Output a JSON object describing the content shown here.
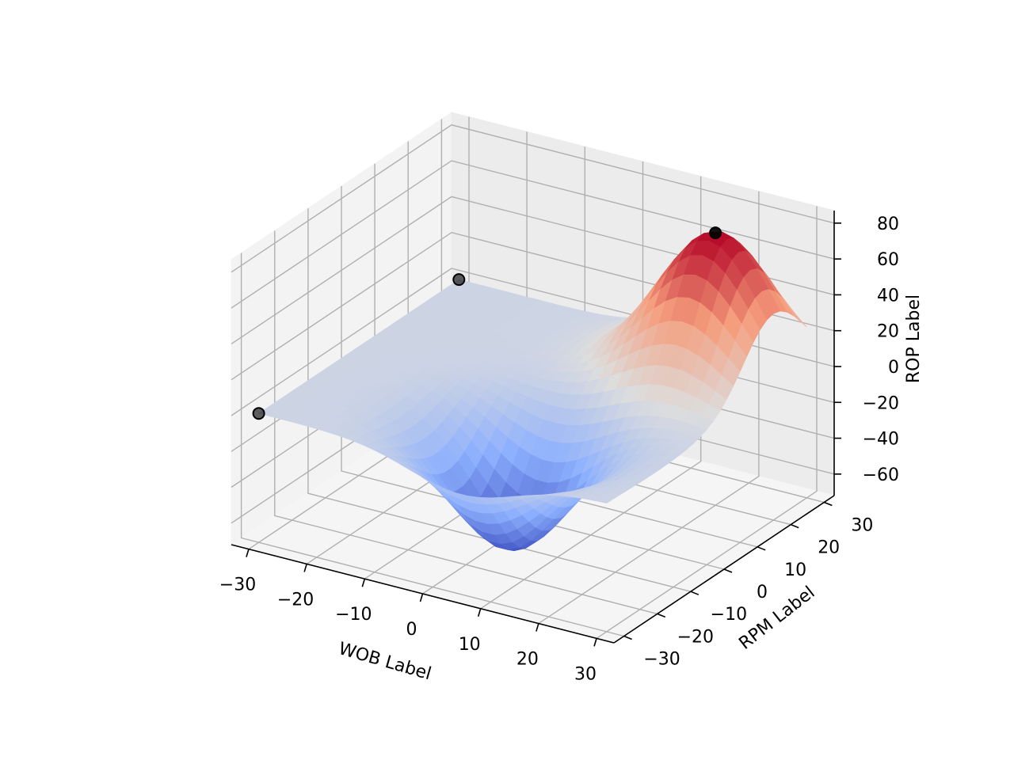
{
  "chart_data": {
    "type": "surface3d",
    "title": "",
    "xlabel": "WOB Label",
    "ylabel": "RPM Label",
    "zlabel": "ROP Label",
    "x_ticks": [
      "−30",
      "−20",
      "−10",
      "0",
      "10",
      "20",
      "30"
    ],
    "y_ticks": [
      "−30",
      "−20",
      "−10",
      "0",
      "10",
      "20",
      "30"
    ],
    "z_ticks": [
      "−60",
      "−40",
      "−20",
      "0",
      "20",
      "40",
      "60",
      "80"
    ],
    "x_tick_values": [
      -30,
      -20,
      -10,
      0,
      10,
      20,
      30
    ],
    "y_tick_values": [
      -30,
      -20,
      -10,
      0,
      10,
      20,
      30
    ],
    "z_tick_values": [
      -60,
      -40,
      -20,
      0,
      20,
      40,
      60,
      80
    ],
    "xlim": [
      -33,
      33
    ],
    "ylim": [
      -33,
      33
    ],
    "zlim": [
      -72,
      87
    ],
    "surface": {
      "x_range": [
        -30,
        30
      ],
      "y_range": [
        -30,
        30
      ],
      "grid_n": 31,
      "peak": {
        "x": 20,
        "y": 20,
        "z": 80,
        "sigma": 9
      },
      "trough": {
        "x": 5,
        "y": -15,
        "z": -65,
        "sigma": 9
      },
      "colormap": "coolwarm"
    },
    "points": [
      {
        "x": -30,
        "y": 30,
        "z": 0
      },
      {
        "x": -30,
        "y": -30,
        "z": 0
      },
      {
        "x": 20,
        "y": 20,
        "z": 80
      }
    ],
    "grid": true
  }
}
